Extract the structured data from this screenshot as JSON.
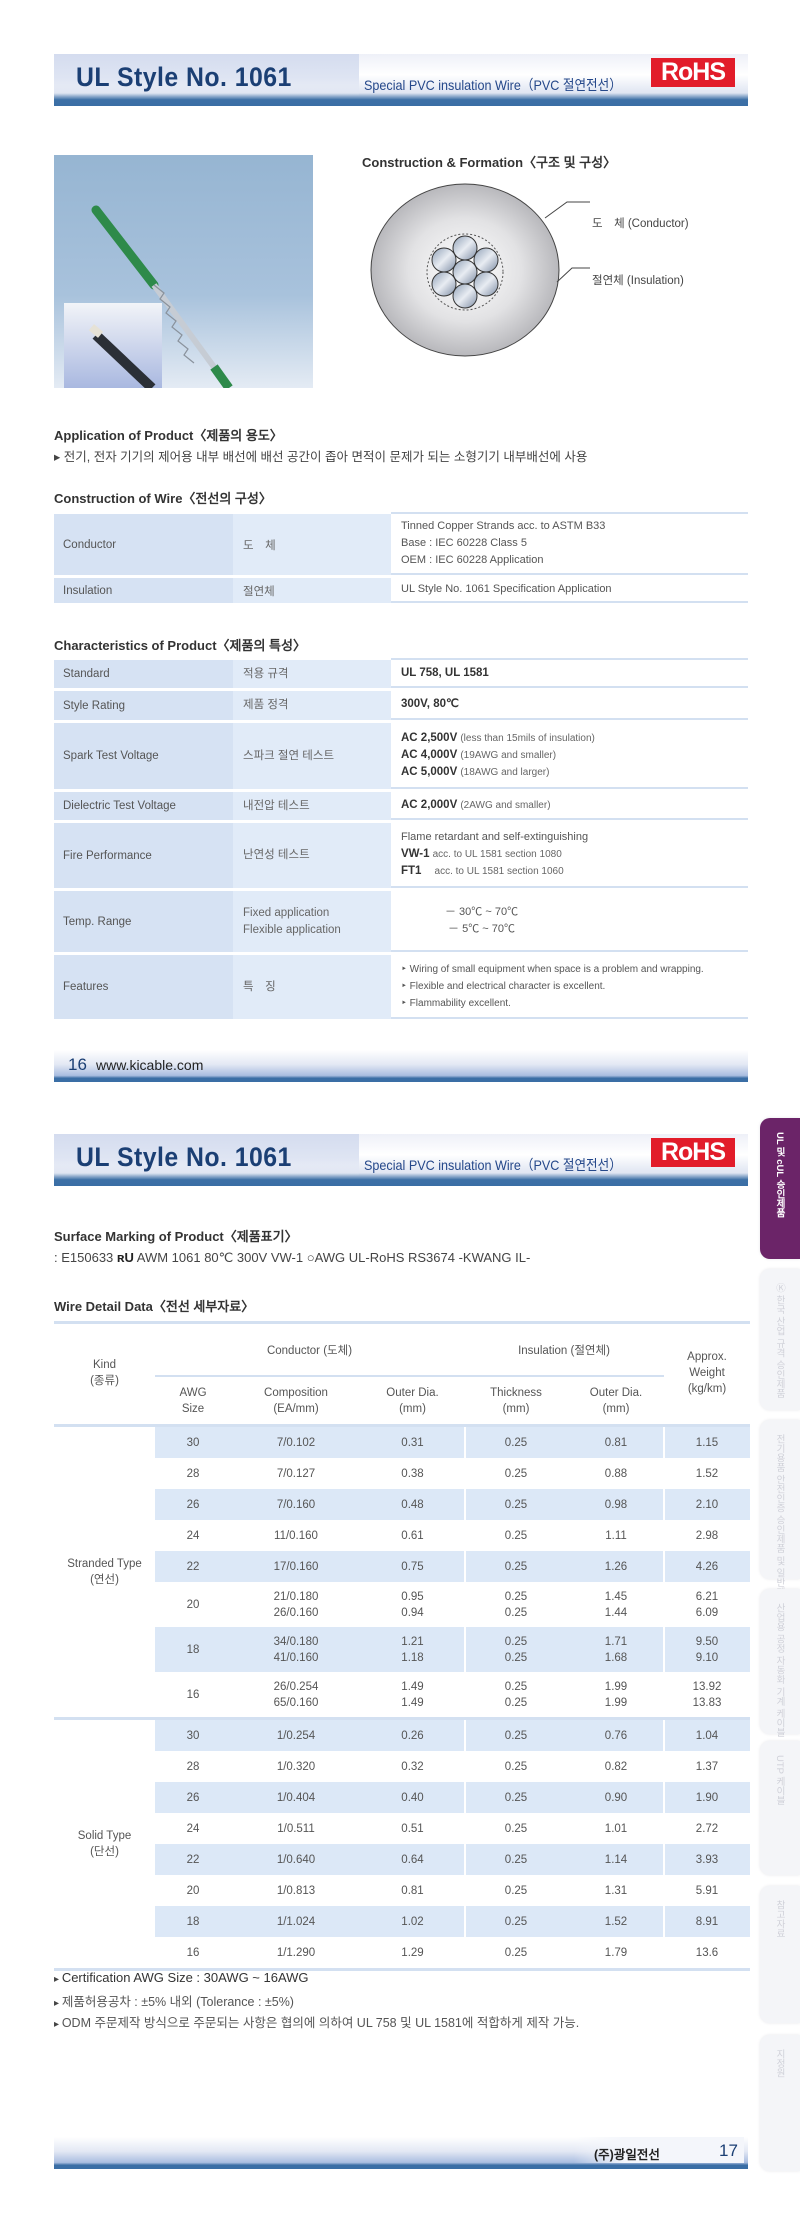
{
  "page1": {
    "header": {
      "title": "UL Style No. 1061",
      "subtitle": "Special PVC insulation Wire（PVC 절연전선）",
      "rohs": "RoHS"
    },
    "construction_formation": {
      "title": "Construction & Formation〈구조 및 구성〉",
      "conductor_label": "도　체 (Conductor)",
      "insulation_label": "절연체 (Insulation)"
    },
    "application": {
      "title": "Application of Product〈제품의 용도〉",
      "text": "▸ 전기, 전자 기기의 제어용 내부 배선에 배선 공간이 좁아 면적이 문제가 되는 소형기기 내부배선에 사용"
    },
    "construction_of_wire": {
      "title": "Construction of Wire〈전선의 구성〉",
      "rows": [
        {
          "en": "Conductor",
          "ko": "도　체",
          "lines": [
            "Tinned Copper Strands acc. to ASTM B33",
            "Base : IEC 60228 Class 5",
            "OEM : IEC 60228 Application"
          ]
        },
        {
          "en": "Insulation",
          "ko": "절연체",
          "lines": [
            "UL Style No. 1061 Specification Application"
          ]
        }
      ]
    },
    "characteristics": {
      "title": "Characteristics of Product〈제품의 특성〉",
      "rows": [
        {
          "en": "Standard",
          "ko": [
            "적용 규격"
          ],
          "values": [
            {
              "bold": "UL 758, UL 1581",
              "text": ""
            }
          ]
        },
        {
          "en": "Style Rating",
          "ko": [
            "제품 정격"
          ],
          "values": [
            {
              "bold": "300V, 80℃",
              "text": ""
            }
          ]
        },
        {
          "en": "Spark Test Voltage",
          "ko": [
            "스파크 절연 테스트"
          ],
          "values": [
            {
              "bold": "AC 2,500V",
              "text": "(less than 15mils of insulation)"
            },
            {
              "bold": "AC 4,000V",
              "text": "(19AWG and smaller)"
            },
            {
              "bold": "AC 5,000V",
              "text": "(18AWG  and larger)"
            }
          ]
        },
        {
          "en": "Dielectric Test Voltage",
          "ko": [
            "내전압 테스트"
          ],
          "values": [
            {
              "bold": "AC 2,000V",
              "text": "(2AWG  and  smaller)"
            }
          ]
        },
        {
          "en": "Fire Performance",
          "ko": [
            "난연성 테스트"
          ],
          "values": [
            {
              "bold": "",
              "text": "Flame retardant and self-extinguishing"
            },
            {
              "bold": "VW-1",
              "text": "acc. to UL 1581 section 1080"
            },
            {
              "bold": "FT1",
              "text": "　acc. to UL 1581 section 1060"
            }
          ]
        },
        {
          "en": "Temp. Range",
          "ko": [
            "Fixed application",
            "Flexible application"
          ],
          "values": [
            {
              "bold": "",
              "text": "　　　　－ 30℃ ~ 70℃"
            },
            {
              "bold": "",
              "text": "　　　　 － 5℃ ~ 70℃"
            }
          ]
        },
        {
          "en": "Features",
          "ko": [
            "특　징"
          ],
          "values": [
            {
              "bold": "",
              "text": "‣ Wiring of small equipment when space is a problem and wrapping."
            },
            {
              "bold": "",
              "text": "‣ Flexible and electrical character is excellent."
            },
            {
              "bold": "",
              "text": "‣ Flammability excellent."
            }
          ]
        }
      ]
    },
    "footer": {
      "page": "16",
      "url": "www.kicable.com"
    }
  },
  "page2": {
    "header": {
      "title": "UL Style No. 1061",
      "subtitle": "Special PVC insulation Wire（PVC 절연전선）",
      "rohs": "RoHS"
    },
    "surface_marking": {
      "title": "Surface Marking  of Product〈제품표기〉",
      "text_before": ": E150633 ",
      "ul_mark": "ʀU",
      "text_after": " AWM 1061  80℃ 300V VW-1 ○AWG  UL-RoHS RS3674   -KWANG IL-"
    },
    "wire_detail": {
      "title": "Wire Detail Data〈전선 세부자료〉",
      "headers": {
        "kind": [
          "Kind",
          "(종류)"
        ],
        "conductor": "Conductor (도체)",
        "insulation": "Insulation (절연체)",
        "weight": [
          "Approx.",
          "Weight",
          "(kg/km)"
        ],
        "awg": [
          "AWG",
          "Size"
        ],
        "composition": [
          "Composition",
          "(EA/mm)"
        ],
        "cond_outer": [
          "Outer Dia.",
          "(mm)"
        ],
        "thickness": [
          "Thickness",
          "(mm)"
        ],
        "ins_outer": [
          "Outer Dia.",
          "(mm)"
        ]
      },
      "groups": [
        {
          "kind": [
            "Stranded Type",
            "(연선)"
          ],
          "rows": [
            {
              "awg": "30",
              "composition": [
                "7/0.102"
              ],
              "cond_outer": [
                "0.31"
              ],
              "thickness": [
                "0.25"
              ],
              "ins_outer": [
                "0.81"
              ],
              "weight": [
                "1.15"
              ]
            },
            {
              "awg": "28",
              "composition": [
                "7/0.127"
              ],
              "cond_outer": [
                "0.38"
              ],
              "thickness": [
                "0.25"
              ],
              "ins_outer": [
                "0.88"
              ],
              "weight": [
                "1.52"
              ]
            },
            {
              "awg": "26",
              "composition": [
                "7/0.160"
              ],
              "cond_outer": [
                "0.48"
              ],
              "thickness": [
                "0.25"
              ],
              "ins_outer": [
                "0.98"
              ],
              "weight": [
                "2.10"
              ]
            },
            {
              "awg": "24",
              "composition": [
                "11/0.160"
              ],
              "cond_outer": [
                "0.61"
              ],
              "thickness": [
                "0.25"
              ],
              "ins_outer": [
                "1.11"
              ],
              "weight": [
                "2.98"
              ]
            },
            {
              "awg": "22",
              "composition": [
                "17/0.160"
              ],
              "cond_outer": [
                "0.75"
              ],
              "thickness": [
                "0.25"
              ],
              "ins_outer": [
                "1.26"
              ],
              "weight": [
                "4.26"
              ]
            },
            {
              "awg": "20",
              "composition": [
                "21/0.180",
                "26/0.160"
              ],
              "cond_outer": [
                "0.95",
                "0.94"
              ],
              "thickness": [
                "0.25",
                "0.25"
              ],
              "ins_outer": [
                "1.45",
                "1.44"
              ],
              "weight": [
                "6.21",
                "6.09"
              ]
            },
            {
              "awg": "18",
              "composition": [
                "34/0.180",
                "41/0.160"
              ],
              "cond_outer": [
                "1.21",
                "1.18"
              ],
              "thickness": [
                "0.25",
                "0.25"
              ],
              "ins_outer": [
                "1.71",
                "1.68"
              ],
              "weight": [
                "9.50",
                "9.10"
              ]
            },
            {
              "awg": "16",
              "composition": [
                "26/0.254",
                "65/0.160"
              ],
              "cond_outer": [
                "1.49",
                "1.49"
              ],
              "thickness": [
                "0.25",
                "0.25"
              ],
              "ins_outer": [
                "1.99",
                "1.99"
              ],
              "weight": [
                "13.92",
                "13.83"
              ]
            }
          ]
        },
        {
          "kind": [
            "Solid Type",
            "(단선)"
          ],
          "rows": [
            {
              "awg": "30",
              "composition": [
                "1/0.254"
              ],
              "cond_outer": [
                "0.26"
              ],
              "thickness": [
                "0.25"
              ],
              "ins_outer": [
                "0.76"
              ],
              "weight": [
                "1.04"
              ]
            },
            {
              "awg": "28",
              "composition": [
                "1/0.320"
              ],
              "cond_outer": [
                "0.32"
              ],
              "thickness": [
                "0.25"
              ],
              "ins_outer": [
                "0.82"
              ],
              "weight": [
                "1.37"
              ]
            },
            {
              "awg": "26",
              "composition": [
                "1/0.404"
              ],
              "cond_outer": [
                "0.40"
              ],
              "thickness": [
                "0.25"
              ],
              "ins_outer": [
                "0.90"
              ],
              "weight": [
                "1.90"
              ]
            },
            {
              "awg": "24",
              "composition": [
                "1/0.511"
              ],
              "cond_outer": [
                "0.51"
              ],
              "thickness": [
                "0.25"
              ],
              "ins_outer": [
                "1.01"
              ],
              "weight": [
                "2.72"
              ]
            },
            {
              "awg": "22",
              "composition": [
                "1/0.640"
              ],
              "cond_outer": [
                "0.64"
              ],
              "thickness": [
                "0.25"
              ],
              "ins_outer": [
                "1.14"
              ],
              "weight": [
                "3.93"
              ]
            },
            {
              "awg": "20",
              "composition": [
                "1/0.813"
              ],
              "cond_outer": [
                "0.81"
              ],
              "thickness": [
                "0.25"
              ],
              "ins_outer": [
                "1.31"
              ],
              "weight": [
                "5.91"
              ]
            },
            {
              "awg": "18",
              "composition": [
                "1/1.024"
              ],
              "cond_outer": [
                "1.02"
              ],
              "thickness": [
                "0.25"
              ],
              "ins_outer": [
                "1.52"
              ],
              "weight": [
                "8.91"
              ]
            },
            {
              "awg": "16",
              "composition": [
                "1/1.290"
              ],
              "cond_outer": [
                "1.29"
              ],
              "thickness": [
                "0.25"
              ],
              "ins_outer": [
                "1.79"
              ],
              "weight": [
                "13.6"
              ]
            }
          ]
        }
      ]
    },
    "notes": [
      "Certification AWG Size : 30AWG ~ 16AWG",
      "제품허용공차 : ±5% 내외 (Tolerance : ±5%)",
      "ODM 주문제작 방식으로 주문되는 사항은 협의에 의하여 UL 758 및 UL 1581에 적합하게 제작 가능."
    ],
    "footer": {
      "company": "(주)광일전선",
      "page": "17"
    }
  },
  "side_tabs": [
    {
      "label": "UL 및 cUL 승인제품",
      "active": true
    },
    {
      "label": "Ⓚ 한국 산업 규격 승인제품",
      "active": false
    },
    {
      "label": "전기용품 안전인증 승인제품 및 일반제품",
      "active": false
    },
    {
      "label": "산업용 공정 자동화 기계 케이블",
      "active": false
    },
    {
      "label": "UTP 케이블",
      "active": false
    },
    {
      "label": "참고자료",
      "active": false
    },
    {
      "label": "지정원",
      "active": false
    }
  ],
  "colors": {
    "header_text": "#1b3f74",
    "rohs": "#e21c2a",
    "band": "#3a6ea5",
    "table_shade": "#dce8f7",
    "active_tab": "#6b2468"
  }
}
